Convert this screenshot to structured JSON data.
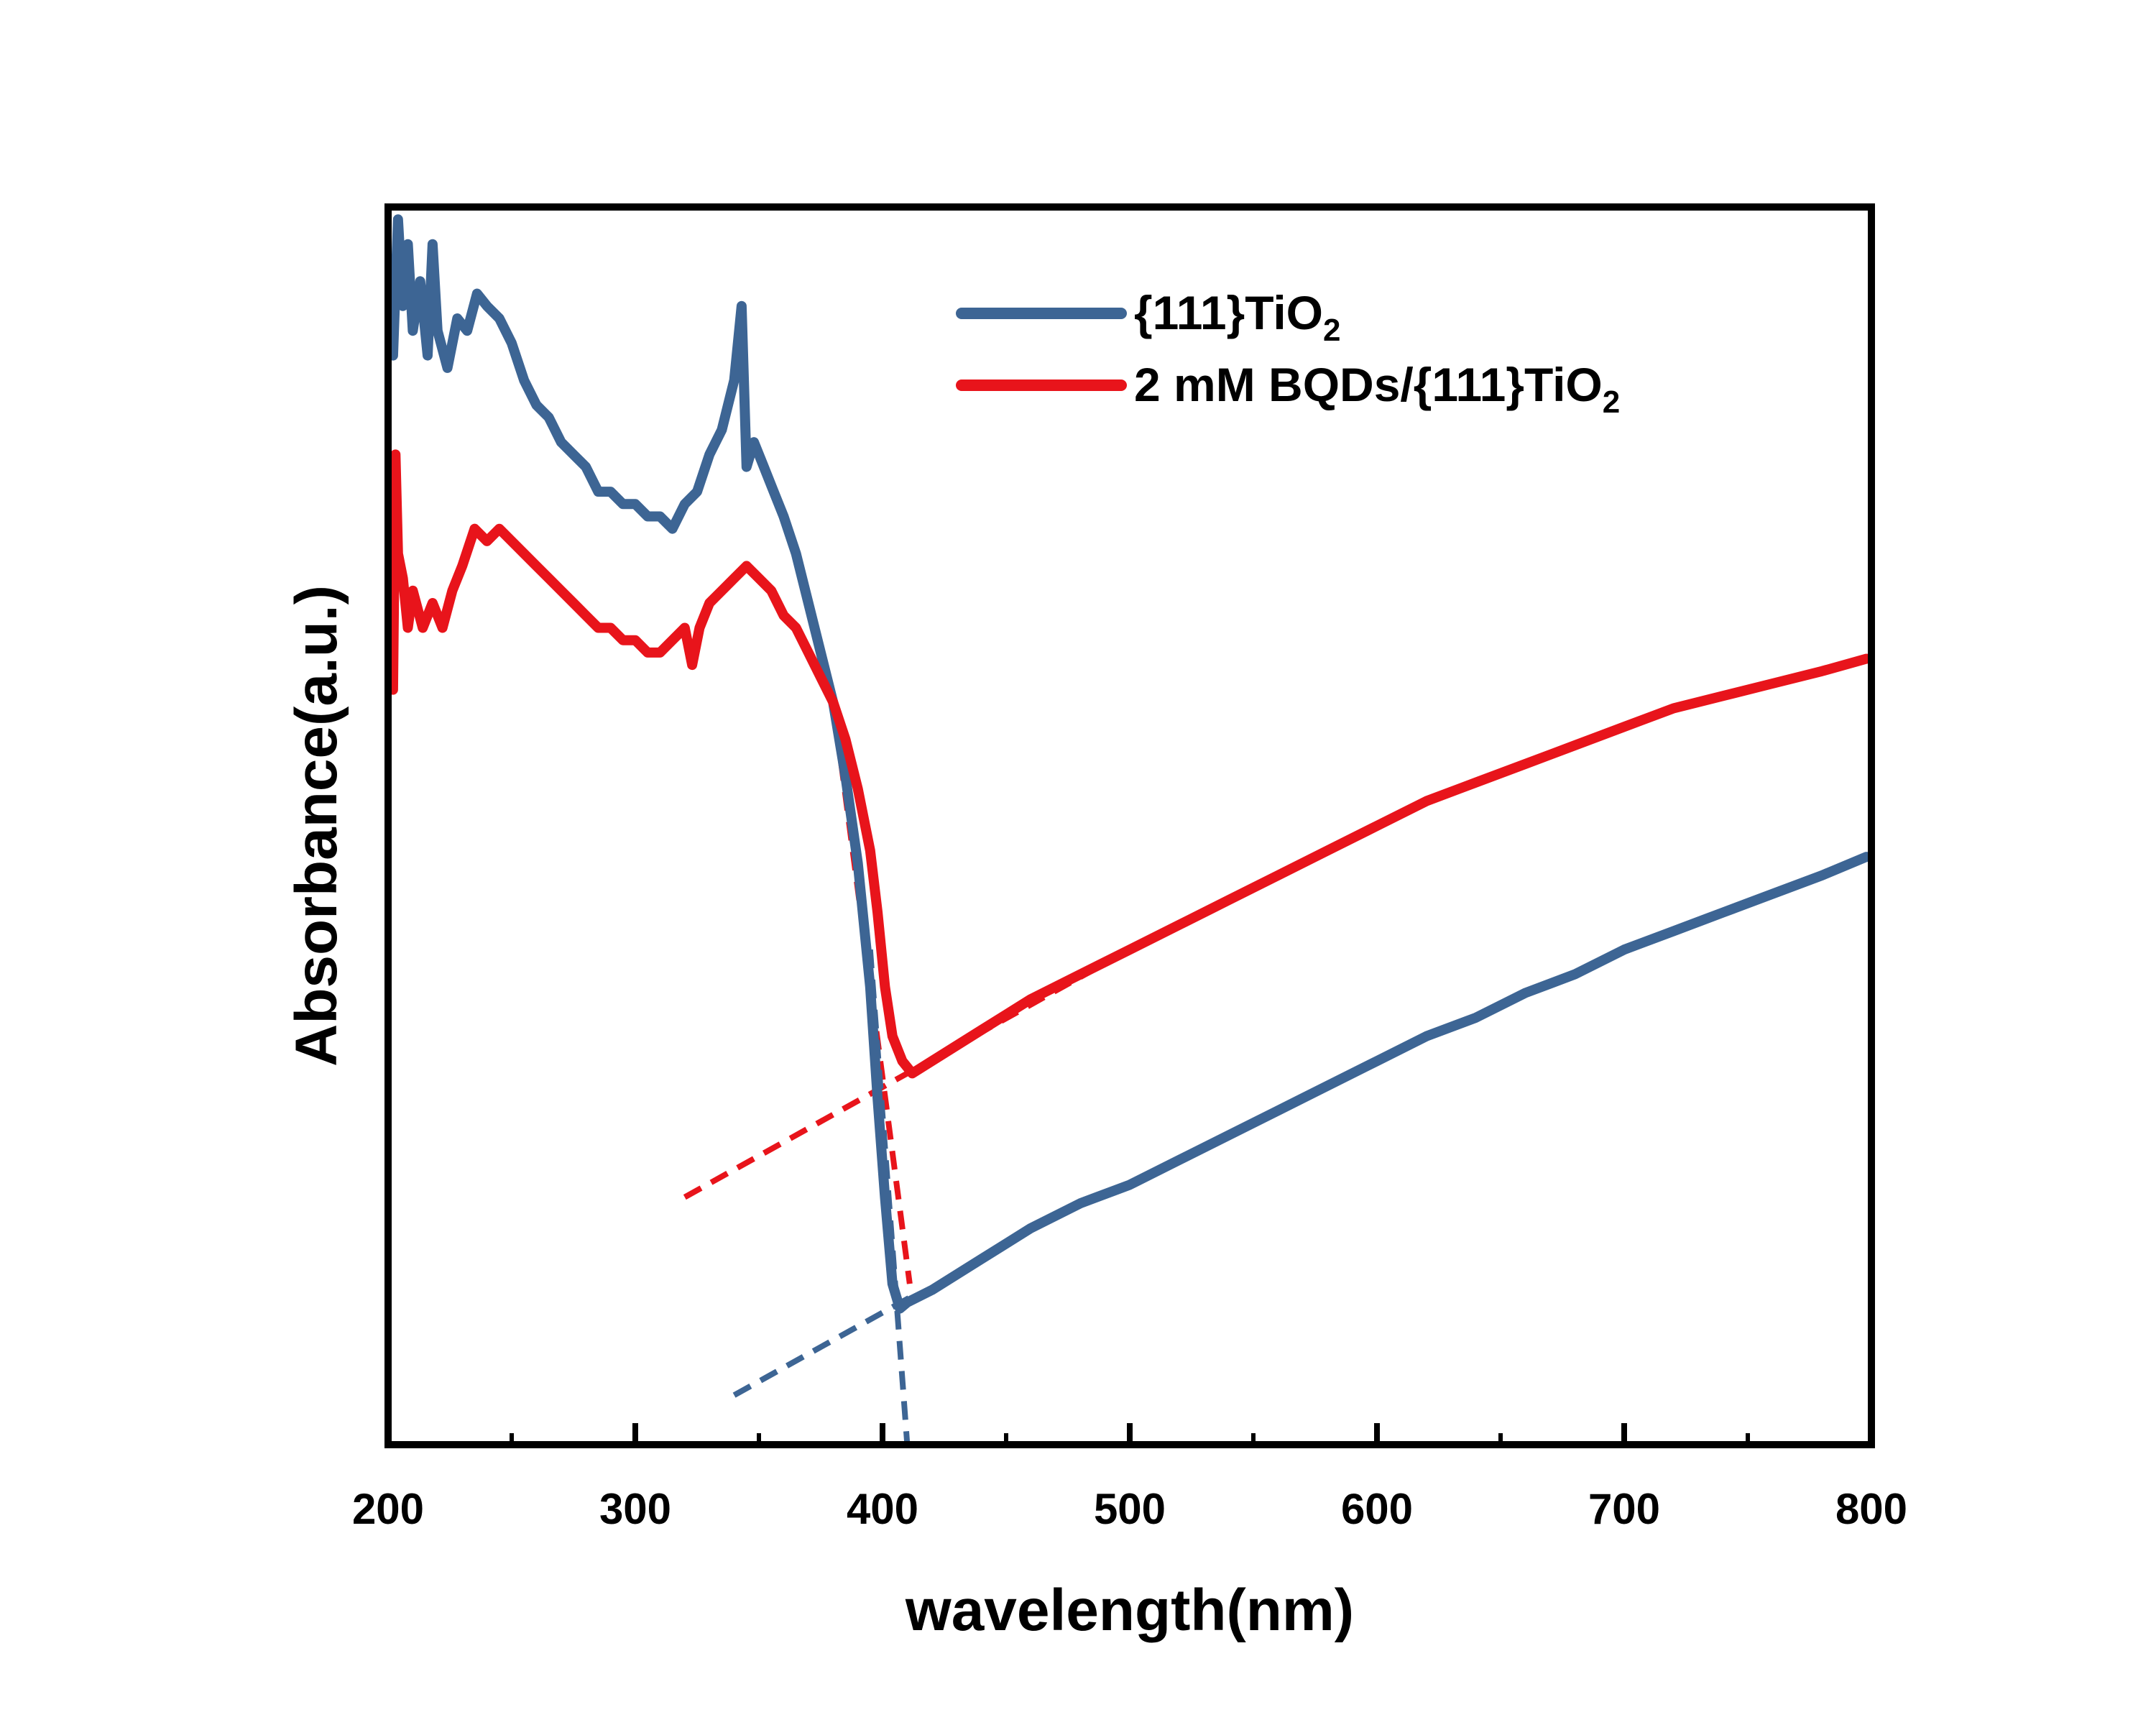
{
  "chart_data": {
    "type": "line",
    "title": "",
    "xlabel": "wavelength(nm)",
    "ylabel": "Absorbance(a.u.)",
    "xlim": [
      200,
      800
    ],
    "ylim": [
      0,
      1
    ],
    "x_ticks": [
      200,
      300,
      400,
      500,
      600,
      700,
      800
    ],
    "x_minor_step": 50,
    "y_tick_labels": "none",
    "grid": false,
    "legend_position": "top-right",
    "series": [
      {
        "name": "{111}TiO",
        "name_subscript": "2",
        "color": "#3d6594",
        "points": [
          [
            202,
            0.88
          ],
          [
            204,
            0.99
          ],
          [
            206,
            0.92
          ],
          [
            208,
            0.97
          ],
          [
            210,
            0.9
          ],
          [
            213,
            0.94
          ],
          [
            216,
            0.88
          ],
          [
            218,
            0.97
          ],
          [
            220,
            0.9
          ],
          [
            224,
            0.87
          ],
          [
            228,
            0.91
          ],
          [
            232,
            0.9
          ],
          [
            236,
            0.93
          ],
          [
            240,
            0.92
          ],
          [
            245,
            0.91
          ],
          [
            250,
            0.89
          ],
          [
            255,
            0.86
          ],
          [
            260,
            0.84
          ],
          [
            265,
            0.83
          ],
          [
            270,
            0.81
          ],
          [
            275,
            0.8
          ],
          [
            280,
            0.79
          ],
          [
            285,
            0.77
          ],
          [
            290,
            0.77
          ],
          [
            295,
            0.76
          ],
          [
            300,
            0.76
          ],
          [
            305,
            0.75
          ],
          [
            310,
            0.75
          ],
          [
            315,
            0.74
          ],
          [
            320,
            0.76
          ],
          [
            325,
            0.77
          ],
          [
            330,
            0.8
          ],
          [
            335,
            0.82
          ],
          [
            340,
            0.86
          ],
          [
            343,
            0.92
          ],
          [
            345,
            0.79
          ],
          [
            348,
            0.81
          ],
          [
            352,
            0.79
          ],
          [
            356,
            0.77
          ],
          [
            360,
            0.75
          ],
          [
            365,
            0.72
          ],
          [
            370,
            0.68
          ],
          [
            375,
            0.64
          ],
          [
            380,
            0.6
          ],
          [
            385,
            0.54
          ],
          [
            390,
            0.47
          ],
          [
            395,
            0.37
          ],
          [
            398,
            0.28
          ],
          [
            401,
            0.2
          ],
          [
            404,
            0.13
          ],
          [
            407,
            0.11
          ],
          [
            410,
            0.115
          ],
          [
            420,
            0.125
          ],
          [
            440,
            0.15
          ],
          [
            460,
            0.175
          ],
          [
            480,
            0.195
          ],
          [
            500,
            0.21
          ],
          [
            520,
            0.23
          ],
          [
            540,
            0.25
          ],
          [
            560,
            0.27
          ],
          [
            580,
            0.29
          ],
          [
            600,
            0.31
          ],
          [
            620,
            0.33
          ],
          [
            640,
            0.345
          ],
          [
            660,
            0.365
          ],
          [
            680,
            0.38
          ],
          [
            700,
            0.4
          ],
          [
            720,
            0.415
          ],
          [
            740,
            0.43
          ],
          [
            760,
            0.445
          ],
          [
            780,
            0.46
          ],
          [
            798,
            0.475
          ]
        ]
      },
      {
        "name": "2 mM BQDs/{111}TiO",
        "name_subscript": "2",
        "color": "#e8141b",
        "points": [
          [
            202,
            0.61
          ],
          [
            203,
            0.8
          ],
          [
            204,
            0.72
          ],
          [
            206,
            0.7
          ],
          [
            208,
            0.66
          ],
          [
            210,
            0.69
          ],
          [
            214,
            0.66
          ],
          [
            218,
            0.68
          ],
          [
            222,
            0.66
          ],
          [
            226,
            0.69
          ],
          [
            230,
            0.71
          ],
          [
            235,
            0.74
          ],
          [
            240,
            0.73
          ],
          [
            245,
            0.74
          ],
          [
            250,
            0.73
          ],
          [
            255,
            0.72
          ],
          [
            260,
            0.71
          ],
          [
            265,
            0.7
          ],
          [
            270,
            0.69
          ],
          [
            275,
            0.68
          ],
          [
            280,
            0.67
          ],
          [
            285,
            0.66
          ],
          [
            290,
            0.66
          ],
          [
            295,
            0.65
          ],
          [
            300,
            0.65
          ],
          [
            305,
            0.64
          ],
          [
            310,
            0.64
          ],
          [
            315,
            0.65
          ],
          [
            320,
            0.66
          ],
          [
            323,
            0.63
          ],
          [
            326,
            0.66
          ],
          [
            330,
            0.68
          ],
          [
            335,
            0.69
          ],
          [
            340,
            0.7
          ],
          [
            345,
            0.71
          ],
          [
            350,
            0.7
          ],
          [
            355,
            0.69
          ],
          [
            360,
            0.67
          ],
          [
            365,
            0.66
          ],
          [
            370,
            0.64
          ],
          [
            375,
            0.62
          ],
          [
            380,
            0.6
          ],
          [
            385,
            0.57
          ],
          [
            390,
            0.53
          ],
          [
            395,
            0.48
          ],
          [
            398,
            0.43
          ],
          [
            401,
            0.37
          ],
          [
            404,
            0.33
          ],
          [
            408,
            0.31
          ],
          [
            412,
            0.3
          ],
          [
            420,
            0.31
          ],
          [
            440,
            0.335
          ],
          [
            460,
            0.36
          ],
          [
            480,
            0.38
          ],
          [
            500,
            0.4
          ],
          [
            520,
            0.42
          ],
          [
            540,
            0.44
          ],
          [
            560,
            0.46
          ],
          [
            580,
            0.48
          ],
          [
            600,
            0.5
          ],
          [
            620,
            0.52
          ],
          [
            640,
            0.535
          ],
          [
            660,
            0.55
          ],
          [
            680,
            0.565
          ],
          [
            700,
            0.58
          ],
          [
            720,
            0.595
          ],
          [
            740,
            0.605
          ],
          [
            760,
            0.615
          ],
          [
            780,
            0.625
          ],
          [
            798,
            0.635
          ]
        ]
      }
    ],
    "tangent_lines": [
      {
        "series": "red",
        "style": "dashed",
        "color": "#e8141b",
        "from": [
          320,
          0.2
        ],
        "to": [
          500,
          0.4
        ]
      },
      {
        "series": "red",
        "style": "dashed",
        "color": "#e8141b",
        "from": [
          380,
          0.6
        ],
        "to": [
          411,
          0.13
        ]
      },
      {
        "series": "blue",
        "style": "dashed",
        "color": "#3d6594",
        "from": [
          340,
          0.04
        ],
        "to": [
          412,
          0.12
        ]
      },
      {
        "series": "blue",
        "style": "dashed",
        "color": "#3d6594",
        "from": [
          395,
          0.4
        ],
        "to": [
          410,
          0.0
        ]
      }
    ]
  }
}
